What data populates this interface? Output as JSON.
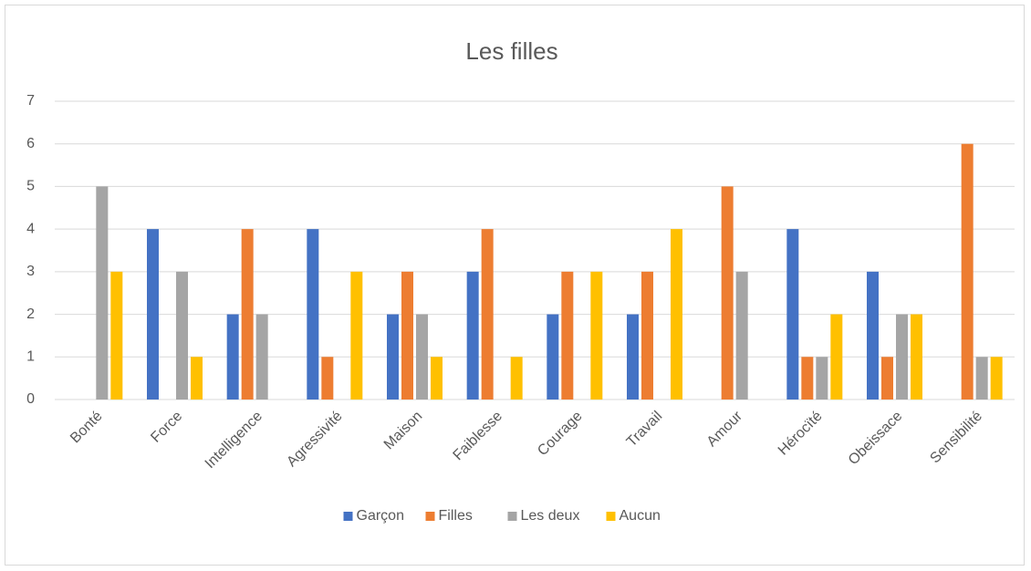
{
  "chart_data": {
    "type": "bar",
    "title": "Les filles",
    "categories": [
      "Bonté",
      "Force",
      "Intelligence",
      "Agressivité",
      "Maison",
      "Faiblesse",
      "Courage",
      "Travail",
      "Amour",
      "Hérocïté",
      "Obeissace",
      "Sensibilité"
    ],
    "series": [
      {
        "name": "Garçon",
        "color": "#4472c4",
        "values": [
          0,
          4,
          2,
          4,
          2,
          3,
          2,
          2,
          0,
          4,
          3,
          0
        ]
      },
      {
        "name": "Filles",
        "color": "#ed7d31",
        "values": [
          0,
          0,
          4,
          1,
          3,
          4,
          3,
          3,
          5,
          1,
          1,
          6
        ]
      },
      {
        "name": "Les deux",
        "color": "#a5a5a5",
        "values": [
          5,
          3,
          2,
          0,
          2,
          0,
          0,
          0,
          3,
          1,
          2,
          1
        ]
      },
      {
        "name": "Aucun",
        "color": "#ffc000",
        "values": [
          3,
          1,
          0,
          3,
          1,
          1,
          3,
          4,
          0,
          2,
          2,
          1
        ]
      }
    ],
    "ylim": [
      0,
      7
    ],
    "yticks": [
      0,
      1,
      2,
      3,
      4,
      5,
      6,
      7
    ],
    "grid": true,
    "legend": "bottom"
  }
}
